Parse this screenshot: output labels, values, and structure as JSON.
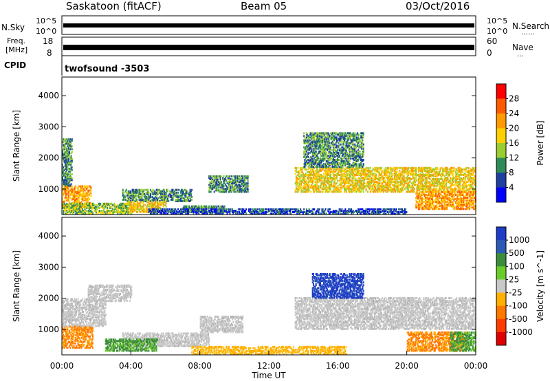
{
  "header": {
    "station": "Saskatoon (fitACF)",
    "beam": "Beam 05",
    "date": "03/Oct/2016"
  },
  "top_panels": {
    "nsky_label": "N.Sky",
    "nsearch_label": "N.Search",
    "nsky_ticks": [
      "10^5",
      "10^0"
    ],
    "nsearch_ticks": [
      "10^5",
      "10^0"
    ],
    "freq_label_1": "Freq.",
    "freq_label_2": "[MHz]",
    "freq_ticks": [
      "18",
      "8"
    ],
    "nave_label": "Nave",
    "nave_ticks": [
      "60",
      "0"
    ],
    "cpid_label": "CPID",
    "cpid_value": "twofsound -3503"
  },
  "chart_data": [
    {
      "type": "heatmap",
      "name": "power",
      "ylabel": "Slant Range [km]",
      "xlabel": "",
      "yticks": [
        1000,
        2000,
        3000,
        4000
      ],
      "ylim": [
        180,
        4600
      ],
      "xlim_hours": [
        0,
        24
      ],
      "colorbar_label": "Power [dB]",
      "colorbar_ticks": [
        "28",
        "24",
        "20",
        "16",
        "12",
        "8",
        "4"
      ],
      "colorbar_colors": [
        "#ff0000",
        "#ff5a00",
        "#ff9a00",
        "#ffd000",
        "#9acd32",
        "#2e8b57",
        "#1e3fa0",
        "#0000ff"
      ],
      "regions": [
        {
          "t": [
            0.0,
            1.7
          ],
          "r": [
            400,
            1100
          ],
          "p": 20
        },
        {
          "t": [
            0.0,
            0.6
          ],
          "r": [
            1100,
            2600
          ],
          "p": 8
        },
        {
          "t": [
            0.0,
            4.0
          ],
          "r": [
            200,
            550
          ],
          "p": 14
        },
        {
          "t": [
            3.5,
            7.5
          ],
          "r": [
            600,
            1000
          ],
          "p": 10
        },
        {
          "t": [
            3.8,
            6.0
          ],
          "r": [
            250,
            600
          ],
          "p": 18
        },
        {
          "t": [
            7.0,
            9.5
          ],
          "r": [
            250,
            450
          ],
          "p": 8
        },
        {
          "t": [
            8.5,
            10.8
          ],
          "r": [
            900,
            1400
          ],
          "p": 8
        },
        {
          "t": [
            13.5,
            24.0
          ],
          "r": [
            900,
            1700
          ],
          "p": 18
        },
        {
          "t": [
            14.0,
            17.5
          ],
          "r": [
            1700,
            2800
          ],
          "p": 8
        },
        {
          "t": [
            20.5,
            24.0
          ],
          "r": [
            350,
            900
          ],
          "p": 20
        },
        {
          "t": [
            5.0,
            20.0
          ],
          "r": [
            200,
            350
          ],
          "p": 6
        }
      ]
    },
    {
      "type": "heatmap",
      "name": "velocity",
      "ylabel": "Slant Range [km]",
      "xlabel": "Time UT",
      "yticks": [
        1000,
        2000,
        3000,
        4000
      ],
      "ylim": [
        180,
        4600
      ],
      "xticks": [
        "00:00",
        "04:00",
        "08:00",
        "12:00",
        "16:00",
        "20:00",
        "00:00"
      ],
      "colorbar_label": "Velocity [m s^-1]",
      "colorbar_ticks": [
        "1000",
        "500",
        "100",
        "25",
        "-25",
        "-100",
        "-500",
        "-1000"
      ],
      "colorbar_colors": [
        "#1e3cc8",
        "#2a5ab4",
        "#3c8c3c",
        "#6acc2a",
        "#c8c8c8",
        "#ffb000",
        "#ff7800",
        "#ff3c00",
        "#e00000"
      ],
      "regions": [
        {
          "t": [
            0.0,
            1.8
          ],
          "r": [
            400,
            1100
          ],
          "v": "orange"
        },
        {
          "t": [
            0.0,
            2.5
          ],
          "r": [
            1100,
            2000
          ],
          "v": "gray"
        },
        {
          "t": [
            1.5,
            4.0
          ],
          "r": [
            1900,
            2400
          ],
          "v": "gray"
        },
        {
          "t": [
            3.5,
            8.5
          ],
          "r": [
            450,
            900
          ],
          "v": "gray"
        },
        {
          "t": [
            2.5,
            5.5
          ],
          "r": [
            300,
            700
          ],
          "v": "green"
        },
        {
          "t": [
            7.5,
            16.5
          ],
          "r": [
            200,
            450
          ],
          "v": "yellow"
        },
        {
          "t": [
            8.0,
            10.5
          ],
          "r": [
            900,
            1400
          ],
          "v": "gray"
        },
        {
          "t": [
            13.5,
            24.0
          ],
          "r": [
            1000,
            2000
          ],
          "v": "gray"
        },
        {
          "t": [
            14.5,
            17.5
          ],
          "r": [
            2000,
            2800
          ],
          "v": "blue"
        },
        {
          "t": [
            20.0,
            23.5
          ],
          "r": [
            300,
            900
          ],
          "v": "orange"
        },
        {
          "t": [
            22.5,
            24.0
          ],
          "r": [
            300,
            900
          ],
          "v": "green"
        }
      ]
    }
  ]
}
